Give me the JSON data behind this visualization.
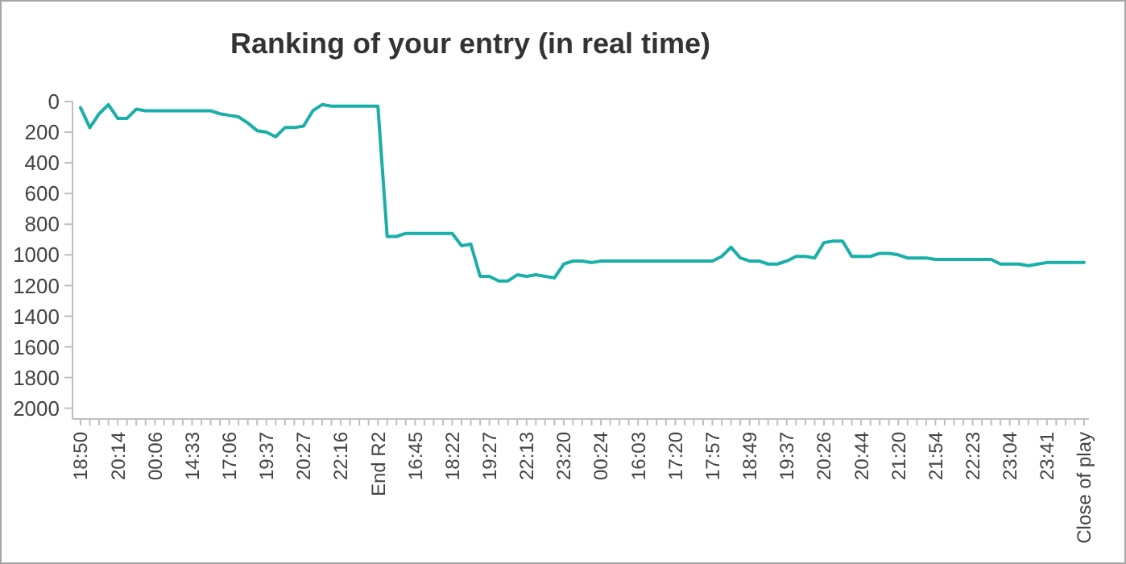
{
  "chart_data": {
    "type": "line",
    "title": "Ranking of your entry (in real time)",
    "categories": [
      "18:50",
      null,
      null,
      null,
      "20:14",
      null,
      null,
      null,
      "00:06",
      null,
      null,
      null,
      "14:33",
      null,
      null,
      null,
      "17:06",
      null,
      null,
      null,
      "19:37",
      null,
      null,
      null,
      "20:27",
      null,
      null,
      null,
      "22:16",
      null,
      null,
      null,
      "End R2",
      null,
      null,
      null,
      "16:45",
      null,
      null,
      null,
      "18:22",
      null,
      null,
      null,
      "19:27",
      null,
      null,
      null,
      "22:13",
      null,
      null,
      null,
      "23:20",
      null,
      null,
      null,
      "00:24",
      null,
      null,
      null,
      "16:03",
      null,
      null,
      null,
      "17:20",
      null,
      null,
      null,
      "17:57",
      null,
      null,
      null,
      "18:49",
      null,
      null,
      null,
      "19:37",
      null,
      null,
      null,
      "20:26",
      null,
      null,
      null,
      "20:44",
      null,
      null,
      null,
      "21:20",
      null,
      null,
      null,
      "21:54",
      null,
      null,
      null,
      "22:23",
      null,
      null,
      null,
      "23:04",
      null,
      null,
      null,
      "23:41",
      null,
      null,
      null,
      "Close of play"
    ],
    "series": [
      {
        "color": "#1aafa8",
        "values": [
          40,
          170,
          80,
          20,
          110,
          110,
          50,
          60,
          60,
          60,
          60,
          60,
          60,
          60,
          60,
          80,
          90,
          100,
          140,
          190,
          200,
          230,
          170,
          170,
          160,
          60,
          20,
          30,
          30,
          30,
          30,
          30,
          30,
          880,
          880,
          860,
          860,
          860,
          860,
          860,
          860,
          940,
          930,
          1140,
          1140,
          1170,
          1170,
          1130,
          1140,
          1130,
          1140,
          1150,
          1060,
          1040,
          1040,
          1050,
          1040,
          1040,
          1040,
          1040,
          1040,
          1040,
          1040,
          1040,
          1040,
          1040,
          1040,
          1040,
          1040,
          1010,
          950,
          1020,
          1040,
          1040,
          1060,
          1060,
          1040,
          1010,
          1010,
          1020,
          920,
          910,
          910,
          1010,
          1010,
          1010,
          990,
          990,
          1000,
          1020,
          1020,
          1020,
          1030,
          1030,
          1030,
          1030,
          1030,
          1030,
          1030,
          1060,
          1060,
          1060,
          1070,
          1060,
          1050,
          1050,
          1050,
          1050,
          1050
        ]
      }
    ],
    "ylim": [
      2070,
      0
    ],
    "yticks": [
      0,
      200,
      400,
      600,
      800,
      1000,
      1200,
      1400,
      1600,
      1800,
      2000
    ]
  }
}
